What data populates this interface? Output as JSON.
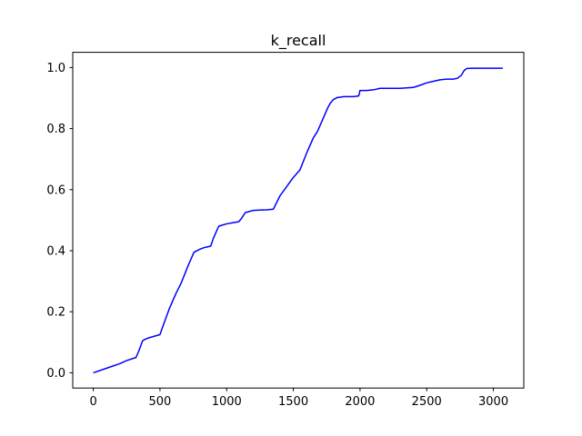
{
  "chart_data": {
    "type": "line",
    "title": "k_recall",
    "xlabel": "",
    "ylabel": "",
    "xlim": [
      -154,
      3228
    ],
    "ylim": [
      -0.05,
      1.05
    ],
    "xticks": [
      0,
      500,
      1000,
      1500,
      2000,
      2500,
      3000
    ],
    "yticks": [
      0.0,
      0.2,
      0.4,
      0.6,
      0.8,
      1.0
    ],
    "ytick_labels": [
      "0.0",
      "0.2",
      "0.4",
      "0.6",
      "0.8",
      "1.0"
    ],
    "grid": false,
    "series": [
      {
        "color": "#0000ff",
        "x": [
          0,
          100,
          200,
          250,
          320,
          340,
          370,
          390,
          420,
          500,
          520,
          570,
          620,
          660,
          710,
          755,
          800,
          830,
          880,
          900,
          940,
          960,
          1000,
          1050,
          1090,
          1110,
          1140,
          1200,
          1250,
          1300,
          1350,
          1400,
          1450,
          1500,
          1550,
          1600,
          1650,
          1680,
          1720,
          1760,
          1780,
          1800,
          1830,
          1880,
          1950,
          1990,
          2000,
          2050,
          2100,
          2150,
          2200,
          2300,
          2400,
          2450,
          2500,
          2550,
          2600,
          2650,
          2700,
          2730,
          2760,
          2780,
          2800,
          2850,
          2900,
          3000,
          3070
        ],
        "y": [
          0.0,
          0.015,
          0.03,
          0.04,
          0.05,
          0.07,
          0.105,
          0.11,
          0.115,
          0.125,
          0.15,
          0.21,
          0.26,
          0.295,
          0.35,
          0.395,
          0.405,
          0.41,
          0.415,
          0.44,
          0.48,
          0.483,
          0.488,
          0.492,
          0.495,
          0.505,
          0.525,
          0.532,
          0.533,
          0.534,
          0.536,
          0.58,
          0.61,
          0.64,
          0.665,
          0.72,
          0.77,
          0.79,
          0.83,
          0.87,
          0.885,
          0.895,
          0.902,
          0.905,
          0.905,
          0.907,
          0.925,
          0.925,
          0.927,
          0.932,
          0.932,
          0.932,
          0.935,
          0.942,
          0.95,
          0.955,
          0.96,
          0.962,
          0.962,
          0.965,
          0.975,
          0.99,
          0.997,
          0.998,
          0.998,
          0.998,
          0.998
        ]
      }
    ]
  }
}
